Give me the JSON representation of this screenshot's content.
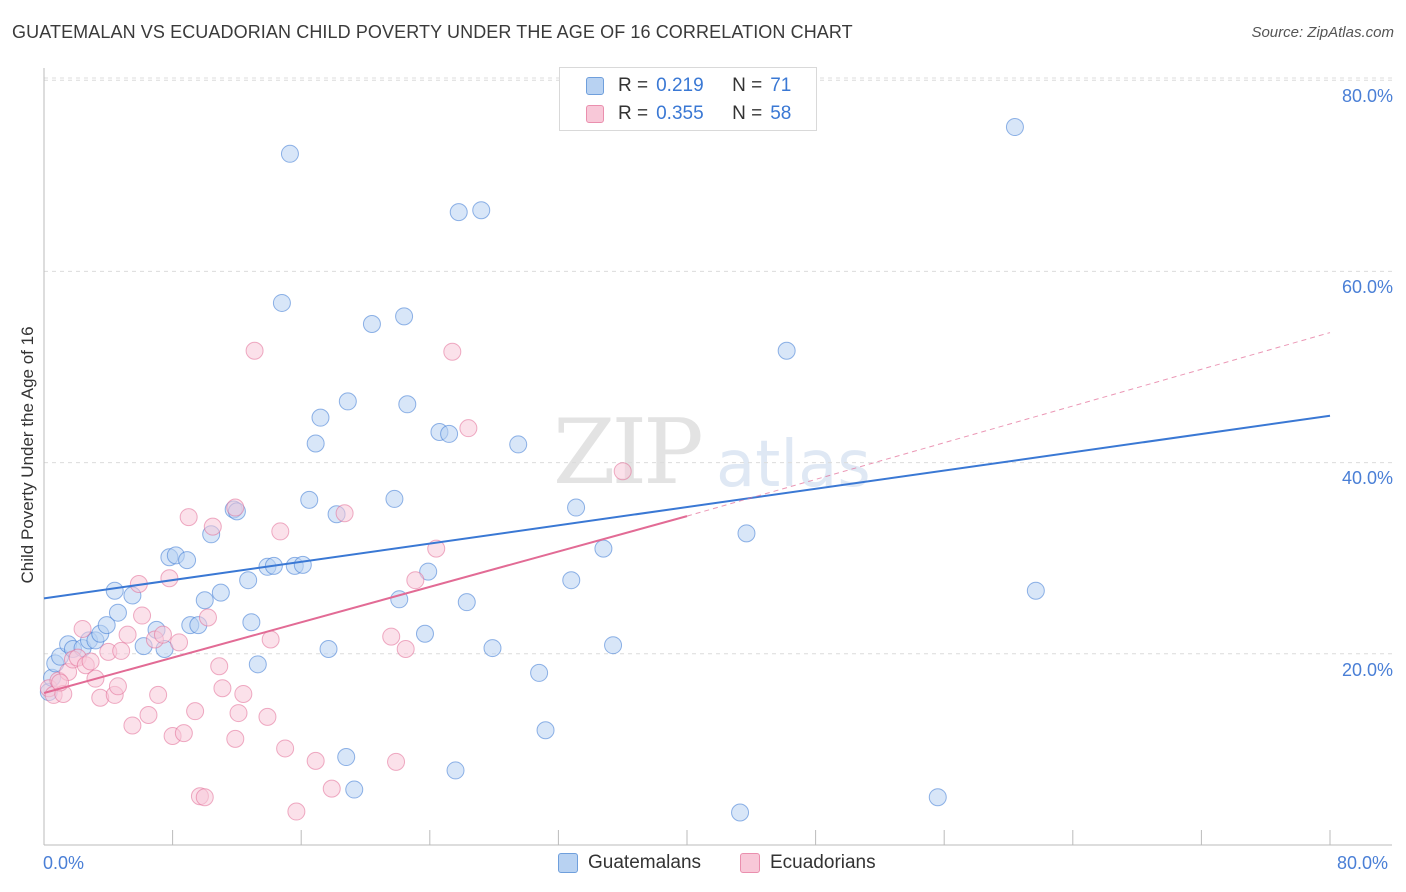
{
  "title": "GUATEMALAN VS ECUADORIAN CHILD POVERTY UNDER THE AGE OF 16 CORRELATION CHART",
  "source": "Source: ZipAtlas.com",
  "watermark": {
    "zip": "ZIP",
    "atlas": "atlas"
  },
  "legend": {
    "r_label": "R =",
    "n_label": "N =",
    "rows": [
      {
        "r": "0.219",
        "n": "71",
        "color": "#a8c8ef",
        "border": "#6f9fdc"
      },
      {
        "r": "0.355",
        "n": "58",
        "color": "#f7c0d2",
        "border": "#ea8fae"
      }
    ]
  },
  "bottom_legend": [
    "Guatemalans",
    "Ecuadorians"
  ],
  "chart_data": {
    "type": "scatter",
    "title": "GUATEMALAN VS ECUADORIAN CHILD POVERTY UNDER THE AGE OF 16 CORRELATION CHART",
    "xlabel": "",
    "ylabel": "Child Poverty Under the Age of 16",
    "xlim": [
      0,
      80
    ],
    "ylim": [
      0,
      84
    ],
    "x_tick_labels": [
      "0.0%",
      "80.0%"
    ],
    "y_tick_labels": [
      "20.0%",
      "40.0%",
      "60.0%",
      "80.0%"
    ],
    "y_ticks": [
      20,
      40,
      60,
      80
    ],
    "grid": true,
    "colors": {
      "guatemalans": "#3a78d4",
      "ecuadorians": "#e26b95",
      "guat_fill": "#b8d2f2",
      "ecu_fill": "#f8c8d8"
    },
    "series": [
      {
        "name": "Guatemalans",
        "trend": {
          "x0": 0,
          "y0": 25.8,
          "x1": 80,
          "y1": 44.9
        },
        "points": [
          [
            0.3,
            16.0
          ],
          [
            0.5,
            17.5
          ],
          [
            0.7,
            19.0
          ],
          [
            1.0,
            19.7
          ],
          [
            1.5,
            21.0
          ],
          [
            1.8,
            20.5
          ],
          [
            2.4,
            20.6
          ],
          [
            2.8,
            21.4
          ],
          [
            3.2,
            21.4
          ],
          [
            3.5,
            22.1
          ],
          [
            3.9,
            23.0
          ],
          [
            4.4,
            26.6
          ],
          [
            4.6,
            24.3
          ],
          [
            5.5,
            26.1
          ],
          [
            6.2,
            20.8
          ],
          [
            7.0,
            22.5
          ],
          [
            7.5,
            20.5
          ],
          [
            7.8,
            30.1
          ],
          [
            8.2,
            30.3
          ],
          [
            8.9,
            29.8
          ],
          [
            9.1,
            23.0
          ],
          [
            9.6,
            23.0
          ],
          [
            10.0,
            25.6
          ],
          [
            10.4,
            32.5
          ],
          [
            11.0,
            26.4
          ],
          [
            11.8,
            35.1
          ],
          [
            12.0,
            34.9
          ],
          [
            12.7,
            27.7
          ],
          [
            12.9,
            23.3
          ],
          [
            13.3,
            18.9
          ],
          [
            13.9,
            29.1
          ],
          [
            14.3,
            29.2
          ],
          [
            14.8,
            56.7
          ],
          [
            15.3,
            72.3
          ],
          [
            15.6,
            29.2
          ],
          [
            16.1,
            29.3
          ],
          [
            16.5,
            36.1
          ],
          [
            16.9,
            42.0
          ],
          [
            17.2,
            44.7
          ],
          [
            17.7,
            20.5
          ],
          [
            18.2,
            34.6
          ],
          [
            18.8,
            9.2
          ],
          [
            18.9,
            46.4
          ],
          [
            19.3,
            5.8
          ],
          [
            20.4,
            54.5
          ],
          [
            21.8,
            36.2
          ],
          [
            22.1,
            25.7
          ],
          [
            22.4,
            55.3
          ],
          [
            22.6,
            46.1
          ],
          [
            23.7,
            22.1
          ],
          [
            23.9,
            28.6
          ],
          [
            24.6,
            43.2
          ],
          [
            25.2,
            43.0
          ],
          [
            25.6,
            7.8
          ],
          [
            25.8,
            66.2
          ],
          [
            26.3,
            25.4
          ],
          [
            27.2,
            66.4
          ],
          [
            27.9,
            20.6
          ],
          [
            29.5,
            41.9
          ],
          [
            30.8,
            18.0
          ],
          [
            31.2,
            12.0
          ],
          [
            32.8,
            27.7
          ],
          [
            33.1,
            35.3
          ],
          [
            34.8,
            31.0
          ],
          [
            35.4,
            20.9
          ],
          [
            43.3,
            3.4
          ],
          [
            43.7,
            32.6
          ],
          [
            46.2,
            51.7
          ],
          [
            55.6,
            5.0
          ],
          [
            60.4,
            75.1
          ],
          [
            61.7,
            26.6
          ]
        ]
      },
      {
        "name": "Ecuadorians",
        "trend": {
          "x0": 0,
          "y0": 15.9,
          "x1": 40,
          "y1": 34.4,
          "dash_x1": 80,
          "dash_y1": 53.6
        },
        "points": [
          [
            0.3,
            16.4
          ],
          [
            0.6,
            15.7
          ],
          [
            0.9,
            17.2
          ],
          [
            1.2,
            15.8
          ],
          [
            1.5,
            18.1
          ],
          [
            1.8,
            19.4
          ],
          [
            2.1,
            19.6
          ],
          [
            2.4,
            22.6
          ],
          [
            2.6,
            18.8
          ],
          [
            2.9,
            19.2
          ],
          [
            3.2,
            17.4
          ],
          [
            3.5,
            15.4
          ],
          [
            4.0,
            20.2
          ],
          [
            4.4,
            15.7
          ],
          [
            4.6,
            16.6
          ],
          [
            4.8,
            20.3
          ],
          [
            5.2,
            22.0
          ],
          [
            5.5,
            12.5
          ],
          [
            5.9,
            27.3
          ],
          [
            6.1,
            24.0
          ],
          [
            6.5,
            13.6
          ],
          [
            6.9,
            21.5
          ],
          [
            7.1,
            15.7
          ],
          [
            7.4,
            22.0
          ],
          [
            7.8,
            27.9
          ],
          [
            8.0,
            11.4
          ],
          [
            8.4,
            21.2
          ],
          [
            8.7,
            11.7
          ],
          [
            9.0,
            34.3
          ],
          [
            9.4,
            14.0
          ],
          [
            9.7,
            5.1
          ],
          [
            10.0,
            5.0
          ],
          [
            10.2,
            23.8
          ],
          [
            10.5,
            33.3
          ],
          [
            10.9,
            18.7
          ],
          [
            11.1,
            16.4
          ],
          [
            11.9,
            35.3
          ],
          [
            11.9,
            11.1
          ],
          [
            12.1,
            13.8
          ],
          [
            12.4,
            15.8
          ],
          [
            13.1,
            51.7
          ],
          [
            13.9,
            13.4
          ],
          [
            14.1,
            21.5
          ],
          [
            14.7,
            32.8
          ],
          [
            15.0,
            10.1
          ],
          [
            15.7,
            3.5
          ],
          [
            16.9,
            8.8
          ],
          [
            17.9,
            5.9
          ],
          [
            18.7,
            34.7
          ],
          [
            21.6,
            21.8
          ],
          [
            21.9,
            8.7
          ],
          [
            22.5,
            20.5
          ],
          [
            23.1,
            27.7
          ],
          [
            24.4,
            31.0
          ],
          [
            25.4,
            51.6
          ],
          [
            26.4,
            43.6
          ],
          [
            36.0,
            39.1
          ],
          [
            1.0,
            17.0
          ]
        ]
      }
    ]
  }
}
